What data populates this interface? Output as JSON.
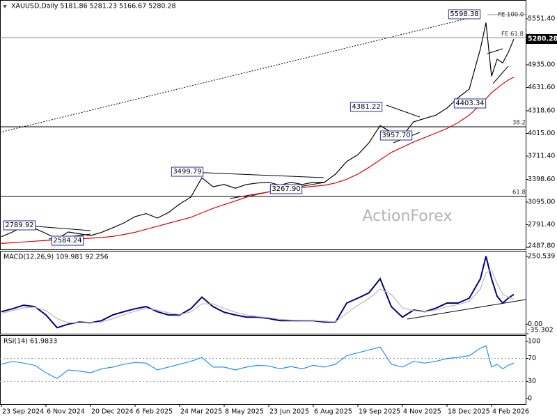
{
  "chart_data": [
    {
      "type": "line",
      "title": "XAUUSD,Daily  5181.86 5281.23 5166.67 5280.28",
      "x": [
        0,
        8,
        16,
        24,
        32,
        40,
        48,
        56,
        64,
        72,
        80,
        88,
        96,
        104,
        112,
        120,
        128,
        136,
        144,
        152,
        160,
        168,
        176,
        184,
        192,
        200,
        208,
        216,
        224,
        232,
        240,
        248,
        256,
        264,
        272,
        280,
        288,
        296,
        304,
        312,
        320,
        328,
        336,
        344,
        348,
        352,
        356,
        360,
        364,
        368
      ],
      "series": [
        {
          "color": "#000000",
          "values": [
            2630,
            2693,
            2768,
            2740,
            2675,
            2600,
            2693,
            2670,
            2645,
            2690,
            2750,
            2815,
            2900,
            2940,
            2880,
            2955,
            3068,
            3160,
            3420,
            3300,
            3330,
            3280,
            3330,
            3350,
            3360,
            3320,
            3360,
            3330,
            3360,
            3360,
            3470,
            3640,
            3730,
            3890,
            4120,
            4030,
            3980,
            4170,
            4215,
            4260,
            4355,
            4495,
            4610,
            5150,
            5500,
            4780,
            5010,
            4960,
            5100,
            5280
          ]
        },
        {
          "color": "#e00000",
          "values": [
            2540,
            2550,
            2560,
            2570,
            2580,
            2590,
            2595,
            2600,
            2610,
            2620,
            2635,
            2660,
            2690,
            2730,
            2770,
            2810,
            2850,
            2890,
            2950,
            3010,
            3060,
            3110,
            3160,
            3200,
            3230,
            3250,
            3270,
            3290,
            3305,
            3320,
            3350,
            3400,
            3470,
            3560,
            3660,
            3760,
            3830,
            3900,
            3960,
            4020,
            4080,
            4160,
            4260,
            4400,
            4480,
            4560,
            4620,
            4680,
            4730,
            4770
          ]
        }
      ],
      "xlim": [
        -1,
        376.5
      ],
      "ylim": [
        2459.9,
        5803.6
      ],
      "yticks": [
        {
          "value": 5551.4,
          "label": "5551.40"
        },
        {
          "value": 4935,
          "label": "4935.00"
        },
        {
          "value": 4631.6,
          "label": "4631.60"
        },
        {
          "value": 4318.6,
          "label": "4318.60"
        },
        {
          "value": 4015,
          "label": "4015.00"
        },
        {
          "value": 3711.4,
          "label": "3711.40"
        },
        {
          "value": 3398.6,
          "label": "3398.60"
        },
        {
          "value": 3095,
          "label": "3095.00"
        },
        {
          "value": 2791.4,
          "label": "2791.40"
        },
        {
          "value": 2487.8,
          "label": "2487.80"
        }
      ],
      "last_price": 5280.28,
      "annotations": [
        "5598.38",
        "FE 100.0",
        "FE 61.8",
        "4381.22",
        "4403.34",
        "3957.70",
        "38.2",
        "3499.79",
        "3267.90",
        "61.8",
        "2789.92",
        "2584.24",
        "ActionForex"
      ]
    },
    {
      "type": "line",
      "title": "MACD(12,26,9) 109.981 92.256",
      "x": [
        0,
        8,
        16,
        24,
        32,
        40,
        48,
        56,
        64,
        72,
        80,
        88,
        96,
        104,
        112,
        120,
        128,
        136,
        144,
        152,
        160,
        168,
        176,
        184,
        192,
        200,
        208,
        216,
        224,
        232,
        240,
        248,
        256,
        264,
        272,
        280,
        288,
        296,
        304,
        312,
        320,
        328,
        336,
        344,
        348,
        352,
        356,
        360,
        364,
        368
      ],
      "series": [
        {
          "color": "#000080",
          "values": [
            46,
            57,
            70,
            65,
            34,
            -13,
            0,
            8,
            5,
            13,
            34,
            46,
            57,
            65,
            46,
            34,
            34,
            57,
            100,
            65,
            44,
            34,
            26,
            26,
            21,
            13,
            13,
            13,
            13,
            8,
            8,
            78,
            96,
            116,
            168,
            65,
            26,
            52,
            46,
            59,
            78,
            78,
            96,
            168,
            251,
            168,
            103,
            78,
            96,
            110
          ]
        },
        {
          "color": "#b8b8b8",
          "values": [
            40,
            50,
            60,
            63,
            50,
            20,
            5,
            5,
            5,
            8,
            20,
            35,
            48,
            58,
            52,
            42,
            36,
            45,
            75,
            75,
            58,
            44,
            34,
            28,
            24,
            18,
            15,
            14,
            13,
            11,
            9,
            40,
            70,
            95,
            130,
            110,
            60,
            50,
            46,
            52,
            65,
            72,
            85,
            130,
            190,
            200,
            150,
            110,
            100,
            92
          ]
        }
      ],
      "xlim": [
        -1,
        376.5
      ],
      "ylim": [
        -35.302,
        271.2
      ],
      "yticks": [
        250.539,
        {
          "value": 0,
          "label": "0.00"
        },
        -35.302
      ]
    },
    {
      "type": "line",
      "title": "RSI(14) 61.9833",
      "x": [
        0,
        8,
        16,
        24,
        32,
        40,
        48,
        56,
        64,
        72,
        80,
        88,
        96,
        104,
        112,
        120,
        128,
        136,
        144,
        152,
        160,
        168,
        176,
        184,
        192,
        200,
        208,
        216,
        224,
        232,
        240,
        248,
        256,
        264,
        272,
        280,
        288,
        296,
        304,
        312,
        320,
        328,
        336,
        344,
        348,
        352,
        356,
        360,
        364,
        368
      ],
      "series": [
        {
          "color": "#1e90ff",
          "values": [
            60,
            65,
            62,
            58,
            45,
            35,
            50,
            48,
            45,
            52,
            55,
            60,
            63,
            62,
            50,
            55,
            60,
            65,
            72,
            55,
            55,
            50,
            55,
            58,
            57,
            52,
            56,
            52,
            58,
            55,
            60,
            75,
            80,
            85,
            90,
            60,
            55,
            65,
            62,
            65,
            70,
            72,
            75,
            88,
            92,
            55,
            60,
            52,
            58,
            62
          ]
        }
      ],
      "xlim": [
        -1,
        376.5
      ],
      "ylim": [
        -9.8,
        111
      ],
      "yticks": [
        100,
        70,
        30,
        0
      ],
      "xticks": [
        {
          "value": 0,
          "label": "23 Sep 2024"
        },
        {
          "value": 32,
          "label": "6 Nov 2024"
        },
        {
          "value": 64,
          "label": "20 Dec 2024"
        },
        {
          "value": 96,
          "label": "6 Feb 2025"
        },
        {
          "value": 128,
          "label": "24 Mar 2025"
        },
        {
          "value": 160,
          "label": "8 May 2025"
        },
        {
          "value": 192,
          "label": "23 Jun 2025"
        },
        {
          "value": 224,
          "label": "6 Aug 2025"
        },
        {
          "value": 256,
          "label": "19 Sep 2025"
        },
        {
          "value": 288,
          "label": "4 Nov 2025"
        },
        {
          "value": 320,
          "label": "18 Dec 2025"
        },
        {
          "value": 352,
          "label": "4 Feb 2026"
        }
      ]
    }
  ]
}
